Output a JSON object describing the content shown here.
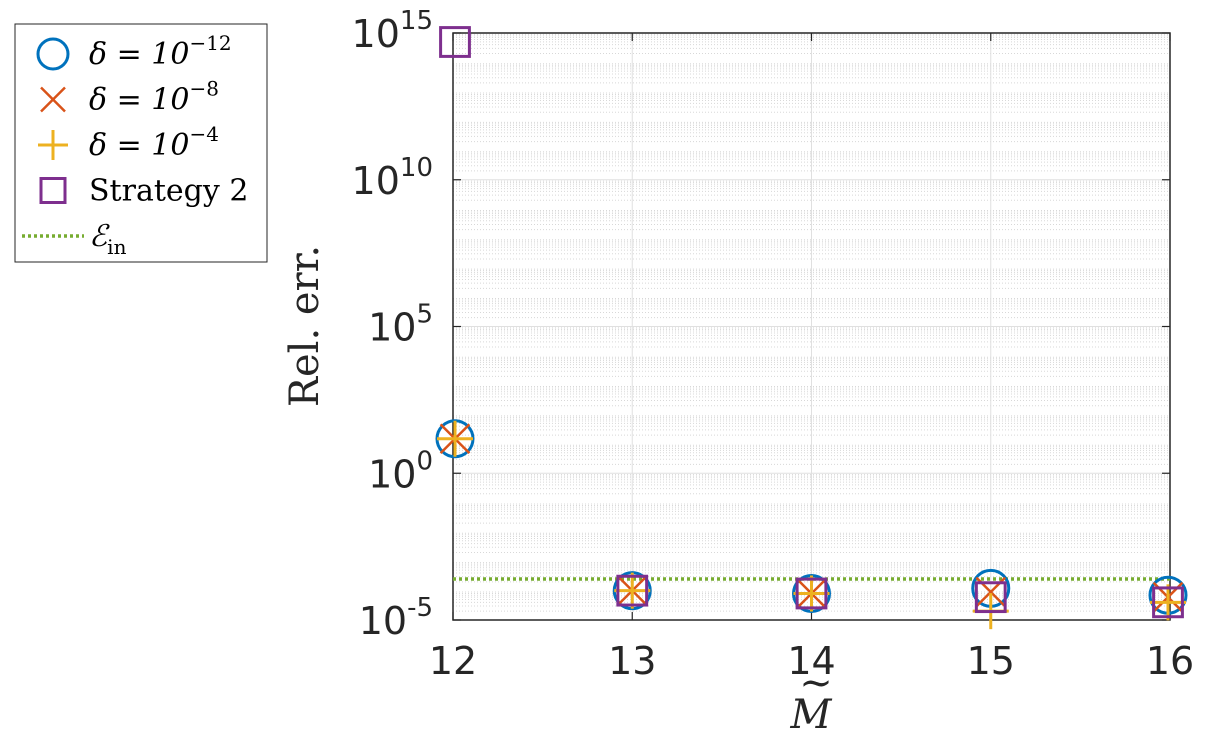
{
  "chart_data": {
    "type": "scatter",
    "x_scale": "linear",
    "y_scale": "log",
    "xlim": [
      12,
      16
    ],
    "ylim": [
      1e-05,
      1000000000000000.0
    ],
    "grid": true,
    "minor_grid_y": true,
    "xlabel": "M̃",
    "xlabel_base": "M",
    "xlabel_accent": "~",
    "ylabel": "Rel. err.",
    "x_ticks": [
      "12",
      "13",
      "14",
      "15",
      "16"
    ],
    "y_ticks": [
      {
        "value": 1e-05,
        "base": "10",
        "exp": "-5"
      },
      {
        "value": 1.0,
        "base": "10",
        "exp": "0"
      },
      {
        "value": 100000.0,
        "base": "10",
        "exp": "5"
      },
      {
        "value": 10000000000.0,
        "base": "10",
        "exp": "10"
      },
      {
        "value": 1000000000000000.0,
        "base": "10",
        "exp": "15"
      }
    ],
    "legend_position": "outside-top-left",
    "series": [
      {
        "name": "δ = 10^−12",
        "label_main": "δ = 10",
        "label_exp": "−12",
        "marker": "circle",
        "color": "#0072BD",
        "x": [
          12,
          13,
          14,
          15,
          16
        ],
        "y": [
          15,
          0.0001,
          8e-05,
          0.00012,
          7e-05
        ]
      },
      {
        "name": "δ = 10^−8",
        "label_main": "δ = 10",
        "label_exp": "−8",
        "marker": "x",
        "color": "#D95319",
        "x": [
          12,
          13,
          14,
          15,
          16
        ],
        "y": [
          15,
          0.0001,
          8e-05,
          9e-05,
          6e-05
        ]
      },
      {
        "name": "δ = 10^−4",
        "label_main": "δ = 10",
        "label_exp": "−4",
        "marker": "plus",
        "color": "#EDB120",
        "x": [
          12,
          13,
          14,
          15,
          16
        ],
        "y": [
          15,
          0.0001,
          8e-05,
          2e-05,
          4e-05
        ]
      },
      {
        "name": "Strategy 2",
        "label_main": "Strategy 2",
        "label_exp": "",
        "marker": "square",
        "color": "#7E2F8E",
        "x": [
          12,
          13,
          14,
          15,
          16
        ],
        "y": [
          500000000000000.0,
          0.0001,
          8e-05,
          6e-05,
          4e-05
        ]
      }
    ],
    "reference_line": {
      "name": "ℰ_in",
      "label_main": "ℰ",
      "label_sub": "in",
      "y": 0.00025,
      "style": "dotted",
      "color": "#77AC30"
    }
  }
}
